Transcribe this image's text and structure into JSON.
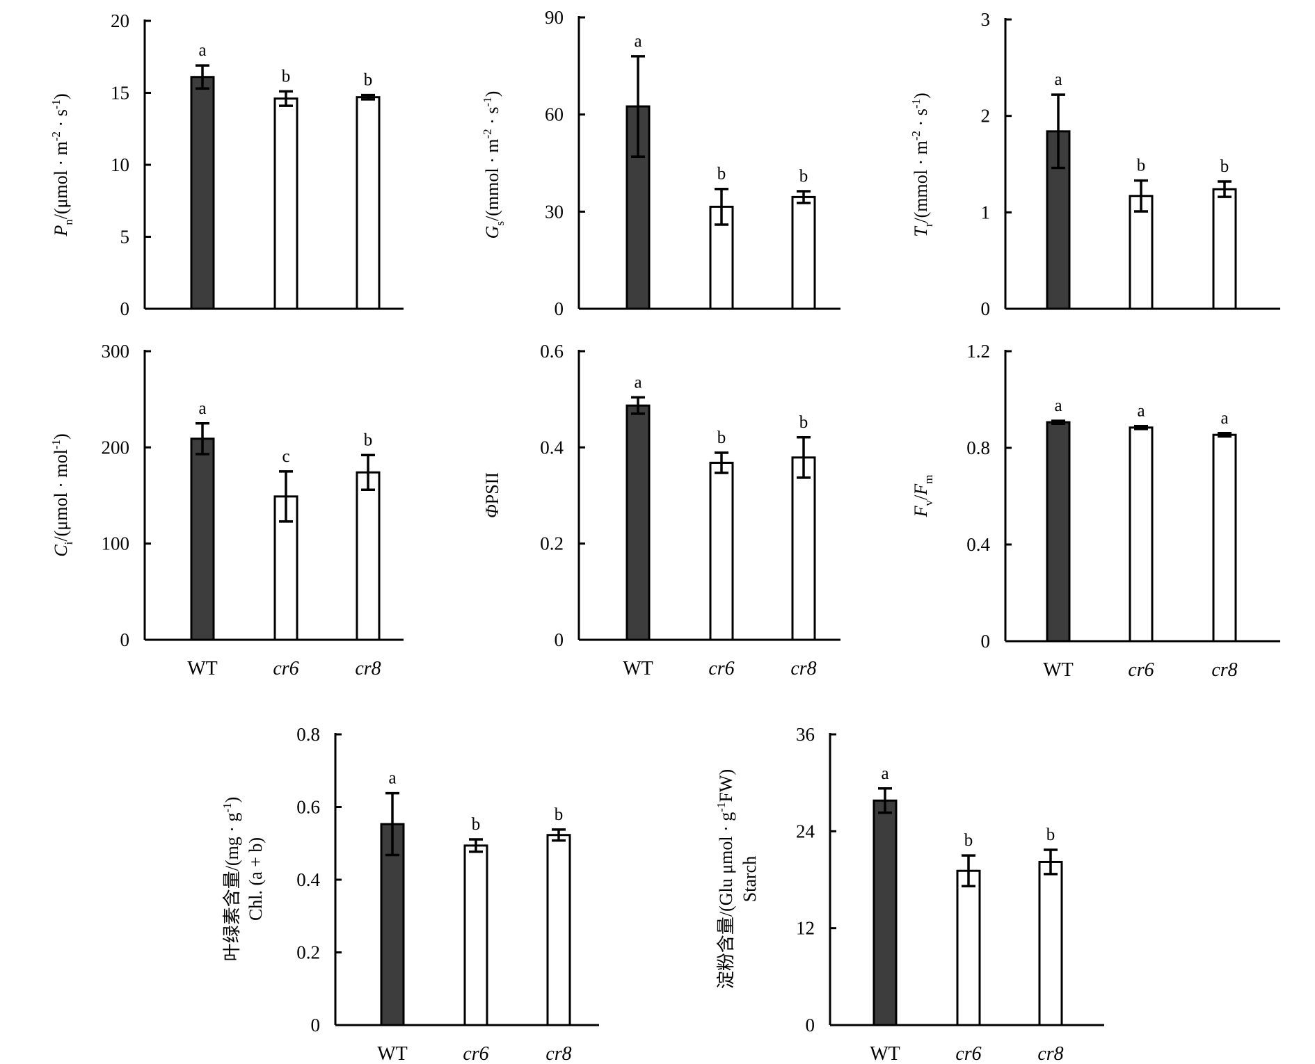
{
  "colors": {
    "wt_bar": "#3d3d3d",
    "mutant_bar": "#ffffff",
    "axis": "#000000"
  },
  "chart_data": [
    {
      "id": "pn",
      "type": "bar",
      "categories": [
        "WT",
        "cr6",
        "cr8"
      ],
      "show_categories": false,
      "values": [
        16.1,
        14.6,
        14.7
      ],
      "errors": [
        0.8,
        0.5,
        0.15
      ],
      "letters": [
        "a",
        "b",
        "b"
      ],
      "ylim": [
        0,
        20
      ],
      "yticks": [
        0,
        5,
        10,
        15,
        20
      ],
      "ylabel": {
        "sym": "P",
        "sub": "n",
        "unit": "/(μmol · m",
        "sup1": "-2",
        "mid": " · s",
        "sup2": "-1",
        "end": ")"
      }
    },
    {
      "id": "gs",
      "type": "bar",
      "categories": [
        "WT",
        "cr6",
        "cr8"
      ],
      "show_categories": false,
      "values": [
        62.5,
        31.5,
        34.5
      ],
      "errors": [
        15.5,
        5.5,
        1.8
      ],
      "letters": [
        "a",
        "b",
        "b"
      ],
      "ylim": [
        0,
        90
      ],
      "yticks": [
        0,
        30,
        60,
        90
      ],
      "ylabel": {
        "sym": "G",
        "sub": "s",
        "unit": "/(mmol · m",
        "sup1": "-2",
        "mid": " · s",
        "sup2": "-1",
        "end": ")"
      }
    },
    {
      "id": "tr",
      "type": "bar",
      "categories": [
        "WT",
        "cr6",
        "cr8"
      ],
      "show_categories": false,
      "values": [
        1.84,
        1.17,
        1.24
      ],
      "errors": [
        0.38,
        0.16,
        0.08
      ],
      "letters": [
        "a",
        "b",
        "b"
      ],
      "ylim": [
        0,
        3
      ],
      "yticks": [
        0,
        1,
        2,
        3
      ],
      "ylabel": {
        "sym": "T",
        "sub": "r",
        "unit": "/(mmol · m",
        "sup1": "-2",
        "mid": " · s",
        "sup2": "-1",
        "end": ")"
      }
    },
    {
      "id": "ci",
      "type": "bar",
      "categories": [
        "WT",
        "cr6",
        "cr8"
      ],
      "show_categories": true,
      "values": [
        209,
        149,
        174
      ],
      "errors": [
        16,
        26,
        18
      ],
      "letters": [
        "a",
        "c",
        "b"
      ],
      "ylim": [
        0,
        300
      ],
      "yticks": [
        0,
        100,
        200,
        300
      ],
      "ylabel": {
        "sym": "C",
        "sub": "i",
        "unit": "/(μmol · mol",
        "sup1": "-1",
        "mid": "",
        "sup2": "",
        "end": ")"
      }
    },
    {
      "id": "phipsii",
      "type": "bar",
      "categories": [
        "WT",
        "cr6",
        "cr8"
      ],
      "show_categories": true,
      "values": [
        0.487,
        0.368,
        0.379
      ],
      "errors": [
        0.017,
        0.021,
        0.042
      ],
      "letters": [
        "a",
        "b",
        "b"
      ],
      "ylim": [
        0,
        0.6
      ],
      "yticks": [
        0,
        0.2,
        0.4,
        0.6
      ],
      "ylabel": {
        "sym": "Φ",
        "sub": "",
        "unit": "PSII",
        "sup1": "",
        "mid": "",
        "sup2": "",
        "end": ""
      }
    },
    {
      "id": "fvfm",
      "type": "bar",
      "categories": [
        "WT",
        "cr6",
        "cr8"
      ],
      "show_categories": true,
      "values": [
        0.906,
        0.884,
        0.854
      ],
      "errors": [
        0.006,
        0.006,
        0.007
      ],
      "letters": [
        "a",
        "a",
        "a"
      ],
      "ylim": [
        0,
        1.2
      ],
      "yticks": [
        0,
        0.4,
        0.8,
        1.2
      ],
      "ylabel": {
        "sym": "F",
        "sub": "v",
        "unit": "/",
        "sym2": "F",
        "sub2": "m"
      }
    },
    {
      "id": "chl",
      "type": "bar",
      "categories": [
        "WT",
        "cr6",
        "cr8"
      ],
      "show_categories": true,
      "values": [
        0.553,
        0.494,
        0.523
      ],
      "errors": [
        0.085,
        0.017,
        0.015
      ],
      "letters": [
        "a",
        "b",
        "b"
      ],
      "ylim": [
        0,
        0.8
      ],
      "yticks": [
        0,
        0.2,
        0.4,
        0.6,
        0.8
      ],
      "ylabel": {
        "line1": "叶绿素含量/(mg · g",
        "sup": "-1",
        "line1_end": ")",
        "line2": "Chl. (a + b)"
      }
    },
    {
      "id": "starch",
      "type": "bar",
      "categories": [
        "WT",
        "cr6",
        "cr8"
      ],
      "show_categories": true,
      "values": [
        27.8,
        19.1,
        20.2
      ],
      "errors": [
        1.5,
        1.9,
        1.5
      ],
      "letters": [
        "a",
        "b",
        "b"
      ],
      "ylim": [
        0,
        36
      ],
      "yticks": [
        0,
        12,
        24,
        36
      ],
      "ylabel": {
        "line1": "淀粉含量/(Glu μmol · g",
        "sup": "-1",
        "line1_end": "FW)",
        "line2": "Starch"
      }
    }
  ]
}
